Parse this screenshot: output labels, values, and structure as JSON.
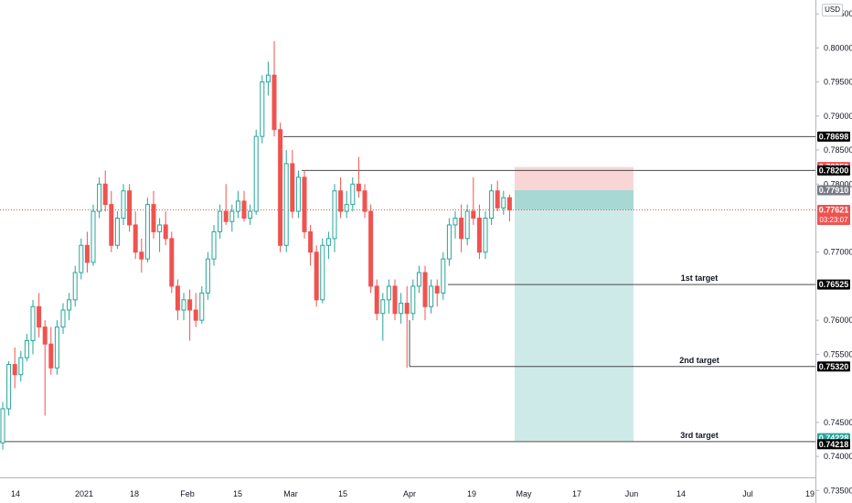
{
  "currency": "USD",
  "chart_data": {
    "type": "candlestick",
    "symbol_currency": "USD",
    "x_ticks": [
      "14",
      "2021",
      "18",
      "Feb",
      "15",
      "Mar",
      "15",
      "Apr",
      "19",
      "May",
      "17",
      "Jun",
      "14",
      "Jul",
      "19"
    ],
    "y_ticks": [
      "0.80500",
      "0.80000",
      "0.79500",
      "0.79000",
      "0.78500",
      "0.78000",
      "0.77000",
      "0.76000",
      "0.75500",
      "0.74500",
      "0.74000",
      "0.73500"
    ],
    "ylim": [
      0.7345,
      0.8065
    ],
    "current_price": 0.77621,
    "countdown": "03:23:07",
    "levels": [
      {
        "price": 0.78698,
        "label": "0.78698",
        "color": "#000000"
      },
      {
        "price": 0.782,
        "label": "0.78200",
        "color": "#000000"
      },
      {
        "price": 0.76525,
        "label": "0.76525",
        "color": "#000000",
        "annotation": "1st target"
      },
      {
        "price": 0.7532,
        "label": "0.75320",
        "color": "#000000",
        "annotation": "2nd target"
      },
      {
        "price": 0.74218,
        "label": "0.74218",
        "color": "#000000",
        "annotation": "3rd target"
      }
    ],
    "position": {
      "type": "short",
      "entry": 0.7791,
      "stop": 0.7825,
      "target": 0.74228,
      "entry_label": "0.77910",
      "stop_label": "0.78250",
      "target_label": "0.74228"
    },
    "colors": {
      "up": "#26a69a",
      "down": "#ef5350",
      "stop_zone": "#f9d6d5",
      "target_zone": "#cdeae8",
      "entry_zone": "#a7d8d4"
    },
    "candles": [
      [
        0.742,
        0.748,
        0.741,
        0.747
      ],
      [
        0.747,
        0.754,
        0.746,
        0.7535
      ],
      [
        0.7535,
        0.756,
        0.75,
        0.752
      ],
      [
        0.752,
        0.7555,
        0.751,
        0.7545
      ],
      [
        0.7545,
        0.758,
        0.754,
        0.757
      ],
      [
        0.757,
        0.763,
        0.755,
        0.762
      ],
      [
        0.762,
        0.764,
        0.7575,
        0.759
      ],
      [
        0.759,
        0.76,
        0.746,
        0.7565
      ],
      [
        0.7565,
        0.759,
        0.752,
        0.753
      ],
      [
        0.753,
        0.76,
        0.752,
        0.759
      ],
      [
        0.759,
        0.7625,
        0.758,
        0.7615
      ],
      [
        0.7615,
        0.764,
        0.76,
        0.763
      ],
      [
        0.763,
        0.768,
        0.762,
        0.767
      ],
      [
        0.767,
        0.772,
        0.766,
        0.771
      ],
      [
        0.771,
        0.773,
        0.767,
        0.7685
      ],
      [
        0.7685,
        0.777,
        0.768,
        0.776
      ],
      [
        0.776,
        0.781,
        0.775,
        0.78
      ],
      [
        0.78,
        0.782,
        0.776,
        0.777
      ],
      [
        0.777,
        0.779,
        0.77,
        0.771
      ],
      [
        0.771,
        0.776,
        0.7705,
        0.775
      ],
      [
        0.775,
        0.78,
        0.774,
        0.779
      ],
      [
        0.779,
        0.78,
        0.773,
        0.774
      ],
      [
        0.774,
        0.776,
        0.769,
        0.77
      ],
      [
        0.77,
        0.772,
        0.767,
        0.769
      ],
      [
        0.769,
        0.778,
        0.7685,
        0.777
      ],
      [
        0.777,
        0.779,
        0.772,
        0.773
      ],
      [
        0.773,
        0.775,
        0.77,
        0.774
      ],
      [
        0.774,
        0.776,
        0.771,
        0.772
      ],
      [
        0.772,
        0.773,
        0.764,
        0.765
      ],
      [
        0.765,
        0.766,
        0.76,
        0.7615
      ],
      [
        0.7615,
        0.764,
        0.76,
        0.763
      ],
      [
        0.763,
        0.7645,
        0.757,
        0.7615
      ],
      [
        0.7615,
        0.764,
        0.759,
        0.76
      ],
      [
        0.76,
        0.765,
        0.7595,
        0.764
      ],
      [
        0.764,
        0.77,
        0.763,
        0.769
      ],
      [
        0.769,
        0.774,
        0.768,
        0.773
      ],
      [
        0.773,
        0.777,
        0.772,
        0.776
      ],
      [
        0.776,
        0.78,
        0.774,
        0.7745
      ],
      [
        0.7745,
        0.777,
        0.773,
        0.776
      ],
      [
        0.776,
        0.779,
        0.775,
        0.7775
      ],
      [
        0.7775,
        0.779,
        0.7745,
        0.775
      ],
      [
        0.775,
        0.777,
        0.774,
        0.776
      ],
      [
        0.776,
        0.788,
        0.7755,
        0.787
      ],
      [
        0.787,
        0.796,
        0.786,
        0.795
      ],
      [
        0.795,
        0.798,
        0.793,
        0.796
      ],
      [
        0.796,
        0.801,
        0.787,
        0.788
      ],
      [
        0.788,
        0.789,
        0.77,
        0.771
      ],
      [
        0.771,
        0.785,
        0.77,
        0.783
      ],
      [
        0.783,
        0.785,
        0.775,
        0.776
      ],
      [
        0.776,
        0.782,
        0.775,
        0.781
      ],
      [
        0.781,
        0.782,
        0.772,
        0.773
      ],
      [
        0.773,
        0.774,
        0.768,
        0.77
      ],
      [
        0.77,
        0.771,
        0.762,
        0.763
      ],
      [
        0.763,
        0.772,
        0.7625,
        0.771
      ],
      [
        0.771,
        0.773,
        0.769,
        0.772
      ],
      [
        0.772,
        0.78,
        0.77,
        0.779
      ],
      [
        0.779,
        0.781,
        0.775,
        0.776
      ],
      [
        0.776,
        0.779,
        0.775,
        0.777
      ],
      [
        0.777,
        0.781,
        0.776,
        0.78
      ],
      [
        0.78,
        0.784,
        0.778,
        0.779
      ],
      [
        0.779,
        0.78,
        0.775,
        0.776
      ],
      [
        0.776,
        0.777,
        0.764,
        0.765
      ],
      [
        0.765,
        0.766,
        0.76,
        0.761
      ],
      [
        0.761,
        0.764,
        0.757,
        0.763
      ],
      [
        0.763,
        0.766,
        0.761,
        0.765
      ],
      [
        0.765,
        0.766,
        0.76,
        0.761
      ],
      [
        0.761,
        0.764,
        0.7595,
        0.7625
      ],
      [
        0.7625,
        0.765,
        0.753,
        0.761
      ],
      [
        0.761,
        0.766,
        0.76,
        0.765
      ],
      [
        0.765,
        0.768,
        0.764,
        0.767
      ],
      [
        0.767,
        0.768,
        0.76,
        0.762
      ],
      [
        0.762,
        0.766,
        0.761,
        0.765
      ],
      [
        0.765,
        0.766,
        0.762,
        0.764
      ],
      [
        0.764,
        0.77,
        0.763,
        0.769
      ],
      [
        0.769,
        0.775,
        0.768,
        0.774
      ],
      [
        0.774,
        0.776,
        0.772,
        0.775
      ],
      [
        0.775,
        0.777,
        0.77,
        0.772
      ],
      [
        0.772,
        0.777,
        0.771,
        0.776
      ],
      [
        0.776,
        0.781,
        0.774,
        0.775
      ],
      [
        0.775,
        0.777,
        0.769,
        0.77
      ],
      [
        0.77,
        0.776,
        0.769,
        0.775
      ],
      [
        0.775,
        0.78,
        0.774,
        0.779
      ],
      [
        0.779,
        0.7805,
        0.776,
        0.7765
      ],
      [
        0.7765,
        0.779,
        0.7755,
        0.778
      ],
      [
        0.778,
        0.7785,
        0.7745,
        0.7762
      ]
    ]
  }
}
